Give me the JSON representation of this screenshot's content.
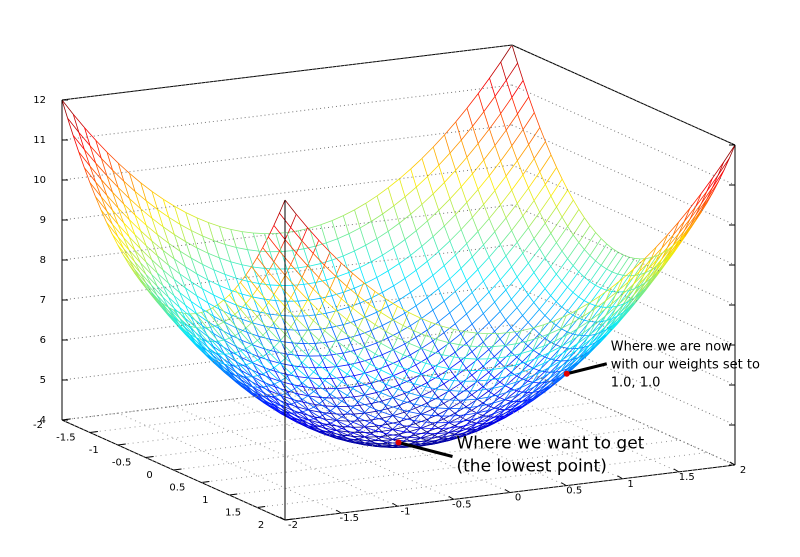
{
  "chart_data": {
    "type": "surface",
    "xlim": [
      -2,
      2
    ],
    "ylim": [
      -2,
      2
    ],
    "zlim": [
      4,
      12
    ],
    "xticks": [
      -2,
      -1.5,
      -1,
      -0.5,
      0,
      0.5,
      1,
      1.5,
      2
    ],
    "yticks": [
      -2,
      -1.5,
      -1,
      -0.5,
      0,
      0.5,
      1,
      1.5,
      2
    ],
    "zticks": [
      4,
      5,
      6,
      7,
      8,
      9,
      10,
      11,
      12
    ],
    "colormap": "jet",
    "point_color": "#e00000",
    "points": [
      {
        "x": 0,
        "y": 0,
        "z": 4,
        "label": [
          "Where we want to get",
          "(the lowest point)"
        ]
      },
      {
        "x": 1,
        "y": 1,
        "z": 6,
        "label": [
          "Where we are now",
          "with our weights set to",
          "1.0, 1.0"
        ]
      }
    ]
  }
}
